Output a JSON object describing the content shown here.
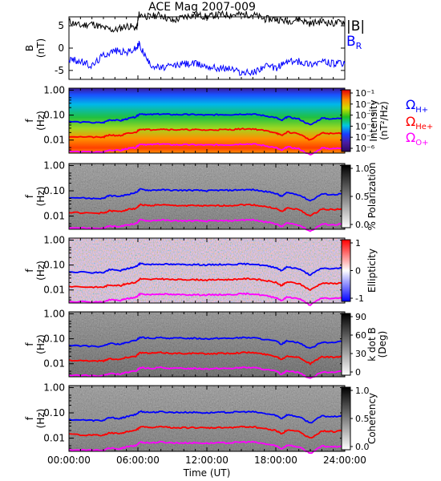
{
  "chart_data": [
    {
      "type": "line",
      "title": "ACE Mag 2007-009",
      "ylabel": "B",
      "yunit": "(nT)",
      "ylim": [
        -7,
        7
      ],
      "yticks": [
        -5,
        0,
        5
      ],
      "series": [
        {
          "name": "|B|",
          "color": "#000000",
          "x": [
            0,
            1,
            2,
            3,
            4,
            5,
            5.9,
            6.1,
            7,
            8,
            9,
            10,
            11,
            12,
            13,
            14,
            15,
            16,
            17,
            18,
            19,
            20,
            21,
            22,
            23,
            24
          ],
          "y": [
            6,
            5,
            5.5,
            4.5,
            4,
            5,
            4.5,
            7.5,
            7,
            7.5,
            6,
            7,
            7.5,
            7,
            7.5,
            7.5,
            7.5,
            7.5,
            6.5,
            6.5,
            6,
            6.5,
            5.5,
            6,
            5.5,
            6
          ]
        },
        {
          "name": "B",
          "label_subscript": "R",
          "color": "#0000ff",
          "x": [
            0,
            1,
            2,
            3,
            4,
            5,
            5.9,
            6.1,
            7,
            8,
            9,
            10,
            11,
            12,
            13,
            14,
            15,
            16,
            17,
            18,
            19,
            20,
            21,
            22,
            23,
            24
          ],
          "y": [
            -2.5,
            -3,
            -4,
            -1.5,
            -0.5,
            -1,
            0,
            1,
            -3.5,
            -4.5,
            -4,
            -3.5,
            -3.5,
            -4,
            -4.5,
            -4.5,
            -5.5,
            -5.5,
            -4,
            -4.5,
            -3,
            -3,
            -3.5,
            -3,
            -3.5,
            -3.5
          ]
        }
      ]
    },
    {
      "type": "heatmap",
      "ylabel": "f",
      "yunit": "(Hz)",
      "ylim": [
        0.003,
        1.2
      ],
      "yscale": "log",
      "yticks": [
        "1.00",
        "0.10",
        "0.01"
      ],
      "colorbar": {
        "label": "Intensity",
        "unit": "(nT²/Hz)",
        "ticks": [
          "10⁻¹",
          "10⁻²",
          "10⁻³",
          "10⁻⁴",
          "10⁻⁵",
          "10⁻⁶"
        ],
        "colormap": "rainbow"
      },
      "overlay_legend": [
        {
          "text": "Ω",
          "sub": "H+",
          "color": "#0000ff"
        },
        {
          "text": "Ω",
          "sub": "He+",
          "color": "#ff0000"
        },
        {
          "text": "Ω",
          "sub": "O+",
          "color": "#ff00ff"
        }
      ]
    },
    {
      "type": "heatmap",
      "ylabel": "f",
      "yunit": "(Hz)",
      "yscale": "log",
      "yticks": [
        "1.00",
        "0.10",
        "0.01"
      ],
      "colorbar": {
        "label": "% Polarization",
        "ticks": [
          "1.0",
          "0.5",
          "0.0"
        ],
        "colormap": "grayscale"
      }
    },
    {
      "type": "heatmap",
      "ylabel": "f",
      "yunit": "(Hz)",
      "yscale": "log",
      "yticks": [
        "1.00",
        "0.10",
        "0.01"
      ],
      "colorbar": {
        "label": "Ellipticity",
        "ticks": [
          "1",
          "0",
          "-1"
        ],
        "colormap": "blue-white-red"
      }
    },
    {
      "type": "heatmap",
      "ylabel": "f",
      "yunit": "(Hz)",
      "yscale": "log",
      "yticks": [
        "1.00",
        "0.10",
        "0.01"
      ],
      "colorbar": {
        "label": "k dot B",
        "unit": "(Deg)",
        "ticks": [
          "90",
          "60",
          "30",
          "0"
        ],
        "colormap": "grayscale"
      }
    },
    {
      "type": "heatmap",
      "ylabel": "f",
      "yunit": "(Hz)",
      "yscale": "log",
      "yticks": [
        "1.00",
        "0.10",
        "0.01"
      ],
      "colorbar": {
        "label": "Coherency",
        "ticks": [
          "1.0",
          "0.5",
          "0.0"
        ],
        "colormap": "grayscale"
      }
    }
  ],
  "gyrofrequency_lines": [
    {
      "ion": "H+",
      "color": "#0000ff",
      "x": [
        0,
        2,
        3,
        3.5,
        4.5,
        5,
        5.8,
        6.2,
        7,
        8,
        9,
        10,
        11,
        12,
        13,
        14,
        15,
        16,
        17,
        18,
        18.5,
        19,
        20,
        21,
        22,
        23,
        24
      ],
      "y": [
        0.055,
        0.05,
        0.05,
        0.065,
        0.06,
        0.07,
        0.085,
        0.115,
        0.105,
        0.11,
        0.105,
        0.105,
        0.105,
        0.1,
        0.105,
        0.105,
        0.11,
        0.11,
        0.095,
        0.08,
        0.06,
        0.085,
        0.07,
        0.04,
        0.075,
        0.07,
        0.08
      ]
    },
    {
      "ion": "He+",
      "color": "#ff0000",
      "x": [
        0,
        2,
        3,
        3.5,
        4.5,
        5,
        5.8,
        6.2,
        7,
        8,
        9,
        10,
        11,
        12,
        13,
        14,
        15,
        16,
        17,
        18,
        18.5,
        19,
        20,
        21,
        22,
        23,
        24
      ],
      "y": [
        0.014,
        0.013,
        0.013,
        0.016,
        0.015,
        0.018,
        0.02,
        0.028,
        0.026,
        0.028,
        0.026,
        0.026,
        0.026,
        0.025,
        0.026,
        0.026,
        0.028,
        0.028,
        0.024,
        0.02,
        0.015,
        0.021,
        0.018,
        0.01,
        0.019,
        0.018,
        0.02
      ]
    },
    {
      "ion": "O+",
      "color": "#ff00ff",
      "x": [
        0,
        2,
        3,
        3.5,
        4.5,
        5,
        5.8,
        6.2,
        7,
        8,
        9,
        10,
        11,
        12,
        13,
        14,
        15,
        16,
        17,
        18,
        18.5,
        19,
        20,
        21,
        22,
        23,
        24
      ],
      "y": [
        0.0035,
        0.0033,
        0.0033,
        0.004,
        0.0038,
        0.0045,
        0.005,
        0.007,
        0.0065,
        0.007,
        0.0065,
        0.0065,
        0.0065,
        0.0063,
        0.0065,
        0.0065,
        0.007,
        0.007,
        0.006,
        0.005,
        0.0038,
        0.0053,
        0.0045,
        0.0025,
        0.0048,
        0.0045,
        0.005
      ]
    }
  ],
  "x_axis": {
    "label": "Time (UT)",
    "range": [
      0,
      24
    ],
    "ticks": [
      "00:00:00",
      "06:00:00",
      "12:00:00",
      "18:00:00",
      "24:00:00"
    ]
  }
}
